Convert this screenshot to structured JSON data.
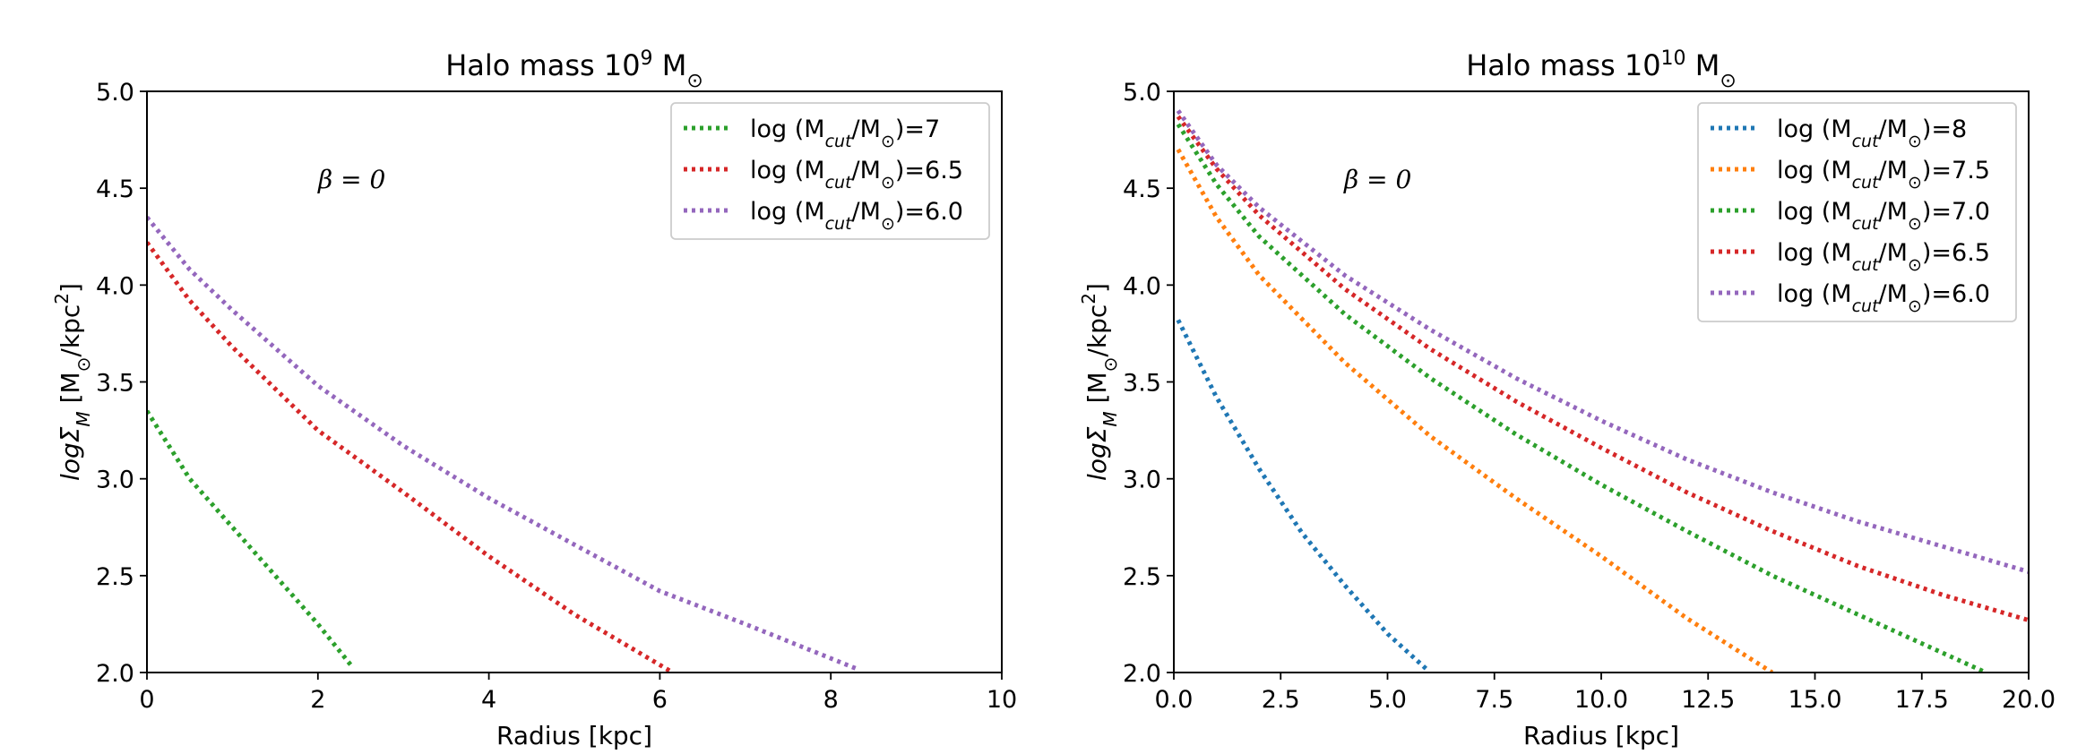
{
  "chart_data": [
    {
      "type": "line",
      "title": "Halo mass 10",
      "title_exp": "9",
      "title_unit": " M",
      "title_unit_sub": "⊙",
      "xlabel": "Radius [kpc]",
      "ylabel_main": "logΣ",
      "ylabel_sub": "M",
      "ylabel_unit": " [M",
      "ylabel_unit_sub": "⊙",
      "ylabel_unit2": "/kpc",
      "ylabel_unit_sup": "2",
      "ylabel_unit3": "]",
      "annotation": "β = 0",
      "xlim": [
        0,
        10
      ],
      "ylim": [
        2.0,
        5.0
      ],
      "xticks": [
        0,
        2,
        4,
        6,
        8,
        10
      ],
      "xtick_labels": [
        "0",
        "2",
        "4",
        "6",
        "8",
        "10"
      ],
      "yticks": [
        2.0,
        2.5,
        3.0,
        3.5,
        4.0,
        4.5,
        5.0
      ],
      "ytick_labels": [
        "2.0",
        "2.5",
        "3.0",
        "3.5",
        "4.0",
        "4.5",
        "5.0"
      ],
      "series": [
        {
          "name": "log (M",
          "name_sub": "cut",
          "name_mid": "/M",
          "name_sub2": "⊙",
          "name_end": ")=7",
          "color": "#2ca02c",
          "x": [
            0,
            0.5,
            1.0,
            1.5,
            2.0,
            2.4
          ],
          "y": [
            3.35,
            3.0,
            2.75,
            2.5,
            2.25,
            2.03
          ]
        },
        {
          "name": "log (M",
          "name_sub": "cut",
          "name_mid": "/M",
          "name_sub2": "⊙",
          "name_end": ")=6.5",
          "color": "#d62728",
          "x": [
            0,
            0.5,
            1.0,
            2.0,
            3.0,
            4.0,
            5.0,
            6.15
          ],
          "y": [
            4.22,
            3.92,
            3.68,
            3.25,
            2.93,
            2.6,
            2.3,
            2.0
          ]
        },
        {
          "name": "log (M",
          "name_sub": "cut",
          "name_mid": "/M",
          "name_sub2": "⊙",
          "name_end": ")=6.0",
          "color": "#9467bd",
          "x": [
            0,
            0.5,
            1.0,
            2.0,
            3.0,
            4.0,
            5.0,
            6.0,
            7.0,
            8.3
          ],
          "y": [
            4.35,
            4.08,
            3.87,
            3.48,
            3.17,
            2.9,
            2.66,
            2.42,
            2.25,
            2.02
          ]
        }
      ]
    },
    {
      "type": "line",
      "title": "Halo mass 10",
      "title_exp": "10",
      "title_unit": " M",
      "title_unit_sub": "⊙",
      "xlabel": "Radius [kpc]",
      "ylabel_main": "logΣ",
      "ylabel_sub": "M",
      "ylabel_unit": " [M",
      "ylabel_unit_sub": "⊙",
      "ylabel_unit2": "/kpc",
      "ylabel_unit_sup": "2",
      "ylabel_unit3": "]",
      "annotation": "β = 0",
      "xlim": [
        0,
        20
      ],
      "ylim": [
        2.0,
        5.0
      ],
      "xticks": [
        0,
        2.5,
        5,
        7.5,
        10,
        12.5,
        15,
        17.5,
        20
      ],
      "xtick_labels": [
        "0.0",
        "2.5",
        "5.0",
        "7.5",
        "10.0",
        "12.5",
        "15.0",
        "17.5",
        "20.0"
      ],
      "yticks": [
        2.0,
        2.5,
        3.0,
        3.5,
        4.0,
        4.5,
        5.0
      ],
      "ytick_labels": [
        "2.0",
        "2.5",
        "3.0",
        "3.5",
        "4.0",
        "4.5",
        "5.0"
      ],
      "series": [
        {
          "name": "log (M",
          "name_sub": "cut",
          "name_mid": "/M",
          "name_sub2": "⊙",
          "name_end": ")=8",
          "color": "#1f77b4",
          "x": [
            0.1,
            1.0,
            2.0,
            3.0,
            4.0,
            5.0,
            5.9
          ],
          "y": [
            3.82,
            3.42,
            3.05,
            2.72,
            2.45,
            2.2,
            2.02
          ]
        },
        {
          "name": "log (M",
          "name_sub": "cut",
          "name_mid": "/M",
          "name_sub2": "⊙",
          "name_end": ")=7.5",
          "color": "#ff7f0e",
          "x": [
            0.1,
            1.0,
            2.0,
            4.0,
            6.0,
            8.0,
            10.0,
            12.0,
            14.0
          ],
          "y": [
            4.7,
            4.35,
            4.05,
            3.6,
            3.22,
            2.9,
            2.6,
            2.28,
            2.0
          ]
        },
        {
          "name": "log (M",
          "name_sub": "cut",
          "name_mid": "/M",
          "name_sub2": "⊙",
          "name_end": ")=7.0",
          "color": "#2ca02c",
          "x": [
            0.1,
            1.0,
            2.0,
            4.0,
            6.0,
            8.0,
            10.0,
            12.0,
            14.0,
            16.0,
            18.0,
            19.0
          ],
          "y": [
            4.83,
            4.52,
            4.25,
            3.85,
            3.52,
            3.23,
            2.97,
            2.73,
            2.5,
            2.3,
            2.1,
            2.0
          ]
        },
        {
          "name": "log (M",
          "name_sub": "cut",
          "name_mid": "/M",
          "name_sub2": "⊙",
          "name_end": ")=6.5",
          "color": "#d62728",
          "x": [
            0.1,
            1.0,
            2.0,
            4.0,
            6.0,
            8.0,
            10.0,
            12.0,
            14.0,
            16.0,
            18.0,
            20.0
          ],
          "y": [
            4.87,
            4.6,
            4.36,
            3.98,
            3.67,
            3.4,
            3.16,
            2.93,
            2.73,
            2.55,
            2.4,
            2.27
          ]
        },
        {
          "name": "log (M",
          "name_sub": "cut",
          "name_mid": "/M",
          "name_sub2": "⊙",
          "name_end": ")=6.0",
          "color": "#9467bd",
          "x": [
            0.1,
            1.0,
            2.0,
            4.0,
            6.0,
            8.0,
            10.0,
            12.0,
            14.0,
            16.0,
            18.0,
            20.0
          ],
          "y": [
            4.9,
            4.62,
            4.4,
            4.05,
            3.77,
            3.52,
            3.3,
            3.1,
            2.93,
            2.78,
            2.65,
            2.52
          ]
        }
      ]
    }
  ]
}
